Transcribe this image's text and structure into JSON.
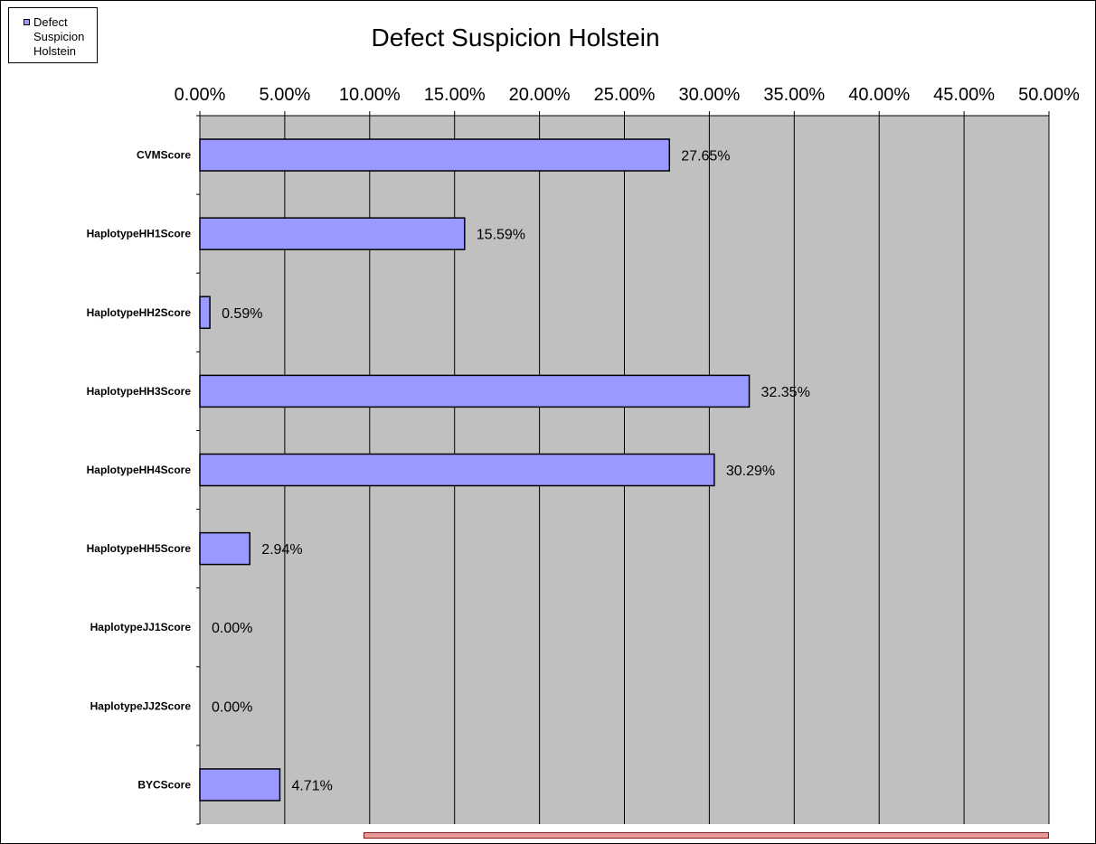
{
  "chart_data": {
    "type": "bar",
    "orientation": "horizontal",
    "title": "Defect Suspicion Holstein",
    "categories": [
      "CVMScore",
      "HaplotypeHH1Score",
      "HaplotypeHH2Score",
      "HaplotypeHH3Score",
      "HaplotypeHH4Score",
      "HaplotypeHH5Score",
      "HaplotypeJJ1Score",
      "HaplotypeJJ2Score",
      "BYCScore"
    ],
    "series": [
      {
        "name": "Defect Suspicion Holstein",
        "values": [
          27.65,
          15.59,
          0.59,
          32.35,
          30.29,
          2.94,
          0.0,
          0.0,
          4.71
        ],
        "labels": [
          "27.65%",
          "15.59%",
          "0.59%",
          "32.35%",
          "30.29%",
          "2.94%",
          "0.00%",
          "0.00%",
          "4.71%"
        ]
      }
    ],
    "xlim": [
      0,
      50
    ],
    "x_ticks": [
      "0.00%",
      "5.00%",
      "10.00%",
      "15.00%",
      "20.00%",
      "25.00%",
      "30.00%",
      "35.00%",
      "40.00%",
      "45.00%",
      "50.00%"
    ],
    "x_axis_position": "top",
    "grid": true,
    "legend_position": "top-left",
    "colors": {
      "bar": "#9999ff",
      "plot_background": "#c0c0c0",
      "gridline": "#000000"
    }
  }
}
